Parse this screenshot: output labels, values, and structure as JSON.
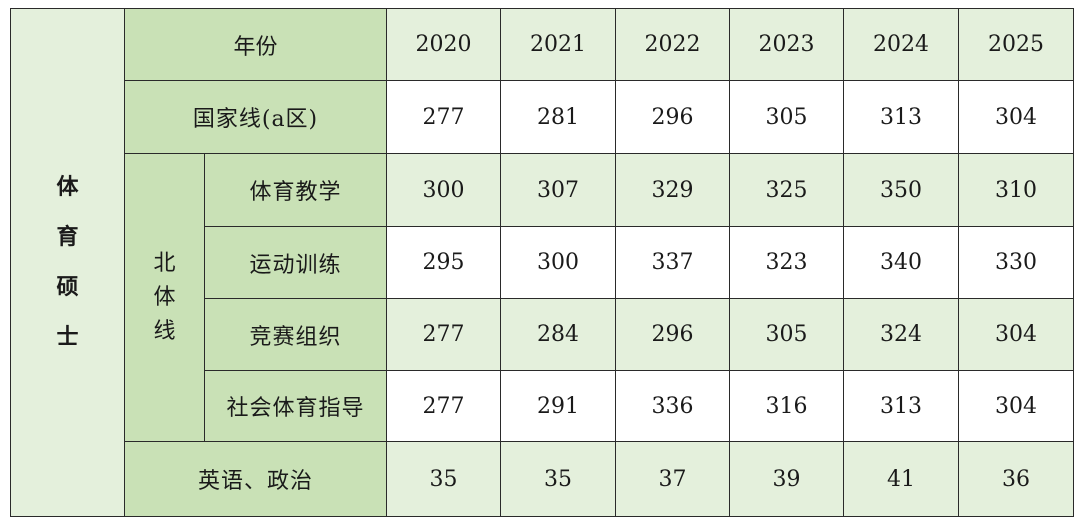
{
  "sidebar": {
    "chars": [
      "体",
      "育",
      "硕",
      "士"
    ]
  },
  "header": {
    "label": "年份",
    "years": [
      "2020",
      "2021",
      "2022",
      "2023",
      "2024",
      "2025"
    ]
  },
  "national_line": {
    "label": "国家线(a区)",
    "values": [
      "277",
      "281",
      "296",
      "305",
      "313",
      "304"
    ]
  },
  "bsu_group": {
    "chars": [
      "北",
      "体",
      "线"
    ],
    "rows": [
      {
        "label": "体育教学",
        "values": [
          "300",
          "307",
          "329",
          "325",
          "350",
          "310"
        ]
      },
      {
        "label": "运动训练",
        "values": [
          "295",
          "300",
          "337",
          "323",
          "340",
          "330"
        ]
      },
      {
        "label": "竞赛组织",
        "values": [
          "277",
          "284",
          "296",
          "305",
          "324",
          "304"
        ]
      },
      {
        "label": "社会体育指导",
        "values": [
          "277",
          "291",
          "336",
          "316",
          "313",
          "304"
        ]
      }
    ]
  },
  "english_politics": {
    "label": "英语、政治",
    "values": [
      "35",
      "35",
      "37",
      "39",
      "41",
      "36"
    ]
  },
  "colors": {
    "header_green": "#c9e1b6",
    "light_green": "#e4f0dc",
    "border": "#2a2a2a"
  }
}
